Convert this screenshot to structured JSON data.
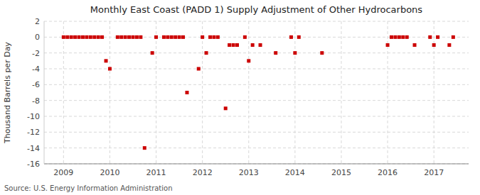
{
  "chart_data": {
    "type": "scatter",
    "title": "Monthly East Coast (PADD 1) Supply Adjustment of Other Hydrocarbons",
    "ylabel": "Thousand Barrels per Day",
    "source": "Source: U.S. Energy Information Administration",
    "color": "#cc0000",
    "marker": "square",
    "grid": true,
    "xlim": [
      2008.58,
      2017.75
    ],
    "xticks": [
      2009,
      2010,
      2011,
      2012,
      2013,
      2014,
      2015,
      2016,
      2017
    ],
    "ylim": [
      -16,
      2
    ],
    "yticks": [
      2,
      0,
      -2,
      -4,
      -6,
      -8,
      -10,
      -12,
      -14,
      -16
    ],
    "x": [
      2009.0,
      2009.083,
      2009.167,
      2009.25,
      2009.333,
      2009.417,
      2009.5,
      2009.583,
      2009.667,
      2009.75,
      2009.833,
      2009.917,
      2010.0,
      2010.167,
      2010.25,
      2010.333,
      2010.417,
      2010.5,
      2010.583,
      2010.667,
      2010.75,
      2010.917,
      2011.0,
      2011.167,
      2011.25,
      2011.333,
      2011.417,
      2011.5,
      2011.583,
      2011.667,
      2011.917,
      2012.0,
      2012.083,
      2012.167,
      2012.25,
      2012.333,
      2012.5,
      2012.583,
      2012.667,
      2012.75,
      2012.917,
      2013.0,
      2013.083,
      2013.25,
      2013.583,
      2013.917,
      2014.0,
      2014.083,
      2014.583,
      2016.0,
      2016.083,
      2016.167,
      2016.25,
      2016.333,
      2016.417,
      2016.583,
      2016.917,
      2017.0,
      2017.083,
      2017.333,
      2017.417
    ],
    "values": [
      0,
      0,
      0,
      0,
      0,
      0,
      0,
      0,
      0,
      0,
      0,
      -3,
      -4,
      0,
      0,
      0,
      0,
      0,
      0,
      0,
      -14,
      -2,
      0,
      0,
      0,
      0,
      0,
      0,
      0,
      -7,
      -4,
      0,
      -2,
      0,
      0,
      0,
      -9,
      -1,
      -1,
      -1,
      0,
      -3,
      -1,
      -1,
      -2,
      0,
      -2,
      0,
      -2,
      -1,
      0,
      0,
      0,
      0,
      0,
      -1,
      0,
      -1,
      0,
      -1,
      0
    ]
  }
}
